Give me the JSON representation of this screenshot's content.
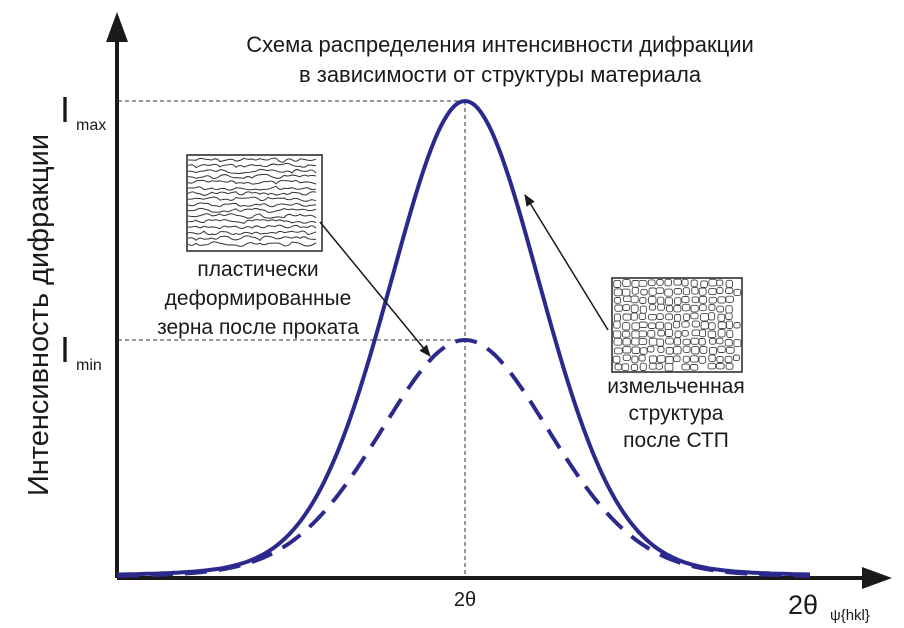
{
  "title": [
    "Схема распределения интенсивности дифракции",
    "в зависимости от структуры материала"
  ],
  "y_axis": {
    "label": "Интенсивность дифракции"
  },
  "levels": {
    "max": {
      "symbol": "I",
      "subscript": "max"
    },
    "min": {
      "symbol": "I",
      "subscript": "min"
    }
  },
  "peak_label": "2θ",
  "x_axis": {
    "symbol": "2θ",
    "subscript": "ψ{hkl}"
  },
  "annotations": [
    {
      "lines": [
        "пластически",
        "деформированные",
        "зерна после проката"
      ]
    },
    {
      "lines": [
        "измельченная",
        "структура",
        "после СТП"
      ]
    }
  ]
}
